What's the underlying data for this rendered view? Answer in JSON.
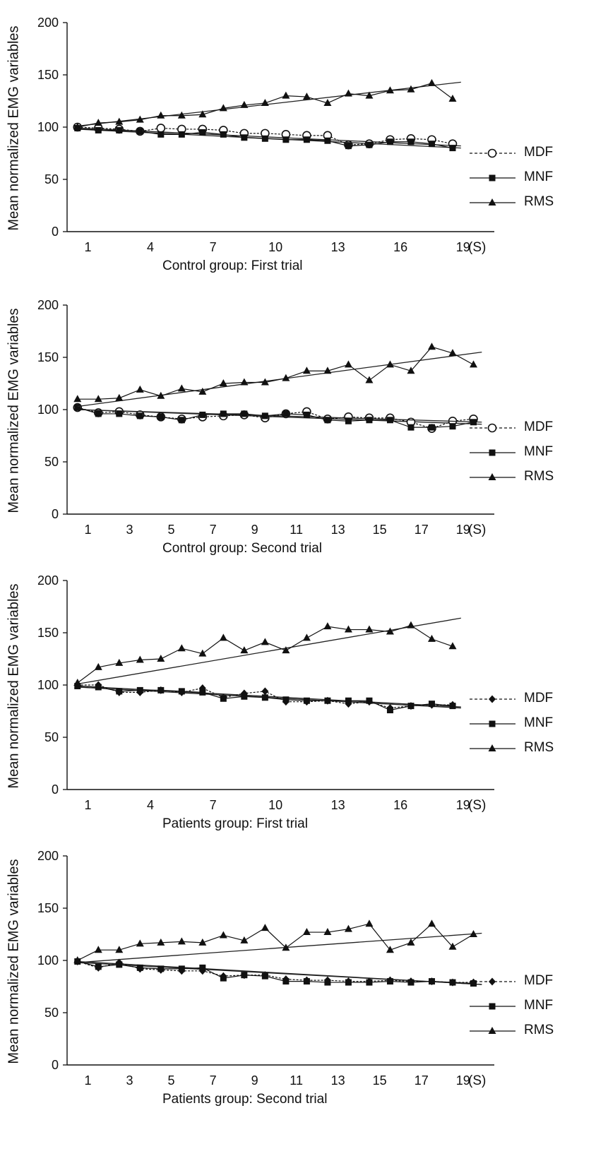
{
  "chart_data": [
    {
      "type": "line",
      "title": "",
      "caption": "Control group: First trial",
      "ylabel": "Mean normalized EMG variables",
      "xunit": "(S)",
      "ylim": [
        0,
        200
      ],
      "yticks": [
        0,
        50,
        100,
        150,
        200
      ],
      "xticks": [
        1,
        4,
        7,
        10,
        13,
        16,
        19
      ],
      "legend_position": "right",
      "series": [
        {
          "name": "MDF",
          "marker": "circle-open",
          "dash": true,
          "x": [
            0.5,
            1.5,
            2.5,
            3.5,
            4.5,
            5.5,
            6.5,
            7.5,
            8.5,
            9.5,
            10.5,
            11.5,
            12.5,
            13.5,
            14.5,
            15.5,
            16.5,
            17.5,
            18.5
          ],
          "y": [
            100,
            99,
            98,
            96,
            99,
            98,
            98,
            97,
            94,
            94,
            93,
            92,
            92,
            83,
            84,
            88,
            89,
            88,
            84
          ],
          "trend": [
            99,
            82
          ]
        },
        {
          "name": "MNF",
          "marker": "square",
          "dash": false,
          "x": [
            0.5,
            1.5,
            2.5,
            3.5,
            4.5,
            5.5,
            6.5,
            7.5,
            8.5,
            9.5,
            10.5,
            11.5,
            12.5,
            13.5,
            14.5,
            15.5,
            16.5,
            17.5,
            18.5
          ],
          "y": [
            99,
            97,
            97,
            96,
            93,
            93,
            95,
            93,
            90,
            89,
            88,
            88,
            87,
            82,
            83,
            86,
            86,
            84,
            80
          ],
          "trend": [
            98,
            80
          ]
        },
        {
          "name": "RMS",
          "marker": "triangle",
          "dash": false,
          "x": [
            0.5,
            1.5,
            2.5,
            3.5,
            4.5,
            5.5,
            6.5,
            7.5,
            8.5,
            9.5,
            10.5,
            11.5,
            12.5,
            13.5,
            14.5,
            15.5,
            16.5,
            17.5,
            18.5
          ],
          "y": [
            100,
            104,
            105,
            107,
            111,
            111,
            112,
            118,
            121,
            123,
            130,
            129,
            123,
            132,
            130,
            135,
            136,
            142,
            127
          ],
          "trend": [
            101,
            143
          ]
        }
      ]
    },
    {
      "type": "line",
      "title": "",
      "caption": "Control group: Second trial",
      "ylabel": "Mean normalized EMG variables",
      "xunit": "(S)",
      "ylim": [
        0,
        200
      ],
      "yticks": [
        0,
        50,
        100,
        150,
        200
      ],
      "xticks": [
        1,
        3,
        5,
        7,
        9,
        11,
        13,
        15,
        17,
        19
      ],
      "legend_position": "right",
      "series": [
        {
          "name": "MDF",
          "marker": "circle-open",
          "dash": true,
          "x": [
            0.5,
            1.5,
            2.5,
            3.5,
            4.5,
            5.5,
            6.5,
            7.5,
            8.5,
            9.5,
            10.5,
            11.5,
            12.5,
            13.5,
            14.5,
            15.5,
            16.5,
            17.5,
            18.5,
            19.5
          ],
          "y": [
            102,
            97,
            98,
            95,
            93,
            91,
            93,
            94,
            95,
            92,
            96,
            98,
            91,
            93,
            92,
            92,
            88,
            82,
            89,
            91
          ],
          "trend": [
            100,
            86
          ]
        },
        {
          "name": "MNF",
          "marker": "square",
          "dash": false,
          "x": [
            0.5,
            1.5,
            2.5,
            3.5,
            4.5,
            5.5,
            6.5,
            7.5,
            8.5,
            9.5,
            10.5,
            11.5,
            12.5,
            13.5,
            14.5,
            15.5,
            16.5,
            17.5,
            18.5,
            19.5
          ],
          "y": [
            102,
            96,
            96,
            94,
            93,
            90,
            95,
            96,
            96,
            94,
            96,
            95,
            90,
            89,
            90,
            90,
            83,
            83,
            84,
            88
          ],
          "trend": [
            100,
            88
          ]
        },
        {
          "name": "RMS",
          "marker": "triangle",
          "dash": false,
          "x": [
            0.5,
            1.5,
            2.5,
            3.5,
            4.5,
            5.5,
            6.5,
            7.5,
            8.5,
            9.5,
            10.5,
            11.5,
            12.5,
            13.5,
            14.5,
            15.5,
            16.5,
            17.5,
            18.5,
            19.5
          ],
          "y": [
            110,
            110,
            111,
            119,
            113,
            120,
            117,
            125,
            126,
            126,
            130,
            137,
            137,
            143,
            128,
            143,
            137,
            160,
            154,
            143
          ],
          "trend": [
            103,
            155
          ]
        }
      ]
    },
    {
      "type": "line",
      "title": "",
      "caption": "Patients group: First trial",
      "ylabel": "Mean normalized EMG variables",
      "xunit": "(S)",
      "ylim": [
        0,
        200
      ],
      "yticks": [
        0,
        50,
        100,
        150,
        200
      ],
      "xticks": [
        1,
        4,
        7,
        10,
        13,
        16,
        19
      ],
      "legend_position": "right",
      "series": [
        {
          "name": "MDF",
          "marker": "diamond",
          "dash": true,
          "x": [
            0.5,
            1.5,
            2.5,
            3.5,
            4.5,
            5.5,
            6.5,
            7.5,
            8.5,
            9.5,
            10.5,
            11.5,
            12.5,
            13.5,
            14.5,
            15.5,
            16.5,
            17.5,
            18.5
          ],
          "y": [
            100,
            100,
            93,
            93,
            95,
            93,
            97,
            88,
            92,
            94,
            84,
            84,
            85,
            82,
            84,
            78,
            80,
            81,
            81
          ],
          "trend": [
            99,
            79
          ]
        },
        {
          "name": "MNF",
          "marker": "square",
          "dash": false,
          "x": [
            0.5,
            1.5,
            2.5,
            3.5,
            4.5,
            5.5,
            6.5,
            7.5,
            8.5,
            9.5,
            10.5,
            11.5,
            12.5,
            13.5,
            14.5,
            15.5,
            16.5,
            17.5,
            18.5
          ],
          "y": [
            99,
            98,
            94,
            95,
            95,
            94,
            93,
            87,
            89,
            88,
            86,
            85,
            85,
            85,
            85,
            76,
            80,
            82,
            80
          ],
          "trend": [
            98,
            78
          ]
        },
        {
          "name": "RMS",
          "marker": "triangle",
          "dash": false,
          "x": [
            0.5,
            1.5,
            2.5,
            3.5,
            4.5,
            5.5,
            6.5,
            7.5,
            8.5,
            9.5,
            10.5,
            11.5,
            12.5,
            13.5,
            14.5,
            15.5,
            16.5,
            17.5,
            18.5
          ],
          "y": [
            102,
            117,
            121,
            124,
            125,
            135,
            130,
            145,
            133,
            141,
            133,
            145,
            156,
            153,
            153,
            151,
            157,
            144,
            137
          ],
          "trend": [
            101,
            164
          ]
        }
      ]
    },
    {
      "type": "line",
      "title": "",
      "caption": "Patients group: Second trial",
      "ylabel": "Mean normalized EMG variables",
      "xunit": "(S)",
      "ylim": [
        0,
        200
      ],
      "yticks": [
        0,
        50,
        100,
        150,
        200
      ],
      "xticks": [
        1,
        3,
        5,
        7,
        9,
        11,
        13,
        15,
        17,
        19
      ],
      "legend_position": "right",
      "series": [
        {
          "name": "MDF",
          "marker": "diamond",
          "dash": true,
          "x": [
            0.5,
            1.5,
            2.5,
            3.5,
            4.5,
            5.5,
            6.5,
            7.5,
            8.5,
            9.5,
            10.5,
            11.5,
            12.5,
            13.5,
            14.5,
            15.5,
            16.5,
            17.5,
            18.5,
            19.5
          ],
          "y": [
            99,
            93,
            98,
            92,
            91,
            90,
            90,
            85,
            86,
            86,
            82,
            81,
            81,
            80,
            80,
            81,
            80,
            80,
            79,
            79
          ],
          "trend": [
            99,
            77
          ]
        },
        {
          "name": "MNF",
          "marker": "square",
          "dash": false,
          "x": [
            0.5,
            1.5,
            2.5,
            3.5,
            4.5,
            5.5,
            6.5,
            7.5,
            8.5,
            9.5,
            10.5,
            11.5,
            12.5,
            13.5,
            14.5,
            15.5,
            16.5,
            17.5,
            18.5,
            19.5
          ],
          "y": [
            99,
            94,
            96,
            93,
            92,
            92,
            93,
            83,
            86,
            85,
            80,
            80,
            79,
            79,
            79,
            80,
            79,
            80,
            79,
            78
          ],
          "trend": [
            98,
            77
          ]
        },
        {
          "name": "RMS",
          "marker": "triangle",
          "dash": false,
          "x": [
            0.5,
            1.5,
            2.5,
            3.5,
            4.5,
            5.5,
            6.5,
            7.5,
            8.5,
            9.5,
            10.5,
            11.5,
            12.5,
            13.5,
            14.5,
            15.5,
            16.5,
            17.5,
            18.5,
            19.5
          ],
          "y": [
            100,
            110,
            110,
            116,
            117,
            118,
            117,
            124,
            119,
            131,
            112,
            127,
            127,
            130,
            135,
            110,
            117,
            135,
            113,
            125
          ],
          "trend": [
            98,
            126
          ]
        }
      ]
    }
  ]
}
